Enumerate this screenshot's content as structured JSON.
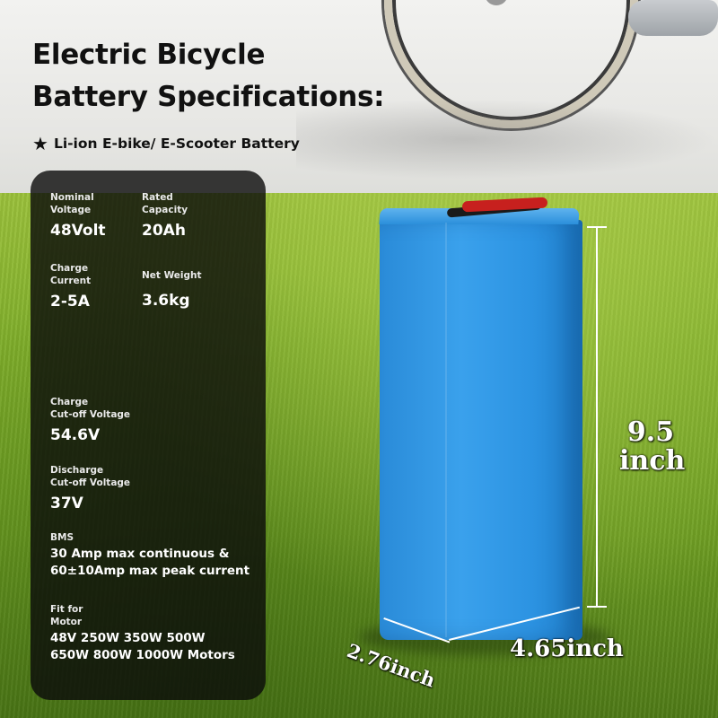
{
  "title_line1": "Electric Bicycle",
  "title_line2": "Battery Specifications:",
  "subtitle": "Li-ion  E-bike/ E-Scooter Battery",
  "subtitle_icon": "star-icon",
  "specs": {
    "nominal_voltage": {
      "label": "Nominal\nVoltage",
      "value": "48Volt"
    },
    "rated_capacity": {
      "label": "Rated\nCapacity",
      "value": "20Ah"
    },
    "charge_current": {
      "label": "Charge\nCurrent",
      "value": "2-5A"
    },
    "net_weight": {
      "label": "Net Weight",
      "value": "3.6kg"
    },
    "charge_cutoff": {
      "label": "Charge\nCut-off Voltage",
      "value": "54.6V"
    },
    "discharge_cutoff": {
      "label": "Discharge\nCut-off Voltage",
      "value": "37V"
    },
    "bms": {
      "label": "BMS",
      "value": "30 Amp max continuous &\n60±10Amp max peak current"
    },
    "fit_for_motor": {
      "label": "Fit for\nMotor",
      "value": "48V  250W 350W 500W\n650W 800W 1000W Motors"
    }
  },
  "dimensions": {
    "height_number": "9.5",
    "height_unit": "inch",
    "depth": "2.76inch",
    "width": "4.65inch"
  },
  "colors": {
    "battery_blue": "#2f97e4",
    "grass_green": "#7fae2a",
    "panel_bg": "#0a0a0a",
    "cable_red": "#c7201e"
  }
}
